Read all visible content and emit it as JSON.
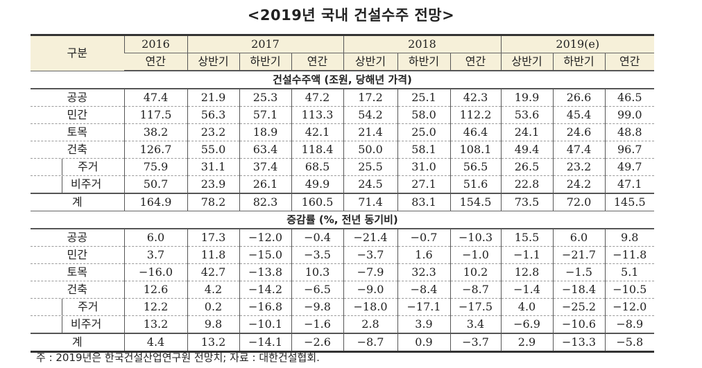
{
  "title": "<2019년 국내 건설수주 전망>",
  "header": {
    "corner": "구분",
    "years": [
      "2016",
      "2017",
      "2018",
      "2019(e)"
    ],
    "periods": [
      "연간",
      "상반기",
      "하반기",
      "연간",
      "상반기",
      "하반기",
      "연간",
      "상반기",
      "하반기",
      "연간"
    ]
  },
  "sections": [
    {
      "title": "건설수주액 (조원, 당해년 가격)",
      "rows": [
        {
          "label": "공공",
          "values": [
            "47.4",
            "21.9",
            "25.3",
            "47.2",
            "17.2",
            "25.1",
            "42.3",
            "19.9",
            "26.6",
            "46.5"
          ]
        },
        {
          "label": "민간",
          "values": [
            "117.5",
            "56.3",
            "57.1",
            "113.3",
            "54.2",
            "58.0",
            "112.2",
            "53.6",
            "45.4",
            "99.0"
          ]
        },
        {
          "label": "토목",
          "values": [
            "38.2",
            "23.2",
            "18.9",
            "42.1",
            "21.4",
            "25.0",
            "46.4",
            "24.1",
            "24.6",
            "48.8"
          ]
        },
        {
          "label": "건축",
          "values": [
            "126.7",
            "55.0",
            "63.4",
            "118.4",
            "50.0",
            "58.1",
            "108.1",
            "49.4",
            "47.4",
            "96.7"
          ]
        },
        {
          "label": "주거",
          "values": [
            "75.9",
            "31.1",
            "37.4",
            "68.5",
            "25.5",
            "31.0",
            "56.5",
            "26.5",
            "23.2",
            "49.7"
          ]
        },
        {
          "label": "비주거",
          "values": [
            "50.7",
            "23.9",
            "26.1",
            "49.9",
            "24.5",
            "27.1",
            "51.6",
            "22.8",
            "24.2",
            "47.1"
          ]
        },
        {
          "label": "계",
          "values": [
            "164.9",
            "78.2",
            "82.3",
            "160.5",
            "71.4",
            "83.1",
            "154.5",
            "73.5",
            "72.0",
            "145.5"
          ]
        }
      ]
    },
    {
      "title": "증감률 (%, 전년 동기비)",
      "rows": [
        {
          "label": "공공",
          "values": [
            "6.0",
            "17.3",
            "−12.0",
            "−0.4",
            "−21.4",
            "−0.7",
            "−10.3",
            "15.5",
            "6.0",
            "9.8"
          ]
        },
        {
          "label": "민간",
          "values": [
            "3.7",
            "11.8",
            "−15.0",
            "−3.5",
            "−3.7",
            "1.6",
            "−1.0",
            "−1.1",
            "−21.7",
            "−11.8"
          ]
        },
        {
          "label": "토목",
          "values": [
            "−16.0",
            "42.7",
            "−13.8",
            "10.3",
            "−7.9",
            "32.3",
            "10.2",
            "12.8",
            "−1.5",
            "5.1"
          ]
        },
        {
          "label": "건축",
          "values": [
            "12.6",
            "4.2",
            "−14.2",
            "−6.5",
            "−9.0",
            "−8.4",
            "−8.7",
            "−1.4",
            "−18.4",
            "−10.5"
          ]
        },
        {
          "label": "주거",
          "values": [
            "12.2",
            "0.2",
            "−16.8",
            "−9.8",
            "−18.0",
            "−17.1",
            "−17.5",
            "4.0",
            "−25.2",
            "−12.0"
          ]
        },
        {
          "label": "비주거",
          "values": [
            "13.2",
            "9.8",
            "−10.1",
            "−1.6",
            "2.8",
            "3.9",
            "3.4",
            "−6.9",
            "−10.6",
            "−8.9"
          ]
        },
        {
          "label": "계",
          "values": [
            "4.4",
            "13.2",
            "−14.1",
            "−2.6",
            "−8.7",
            "0.9",
            "−3.7",
            "2.9",
            "−13.3",
            "−5.8"
          ]
        }
      ]
    }
  ],
  "footnote": "주 : 2019년은 한국건설산업연구원 전망치; 자료 : 대한건설협회.",
  "colors": {
    "header_bg": "#f6f0d9"
  }
}
